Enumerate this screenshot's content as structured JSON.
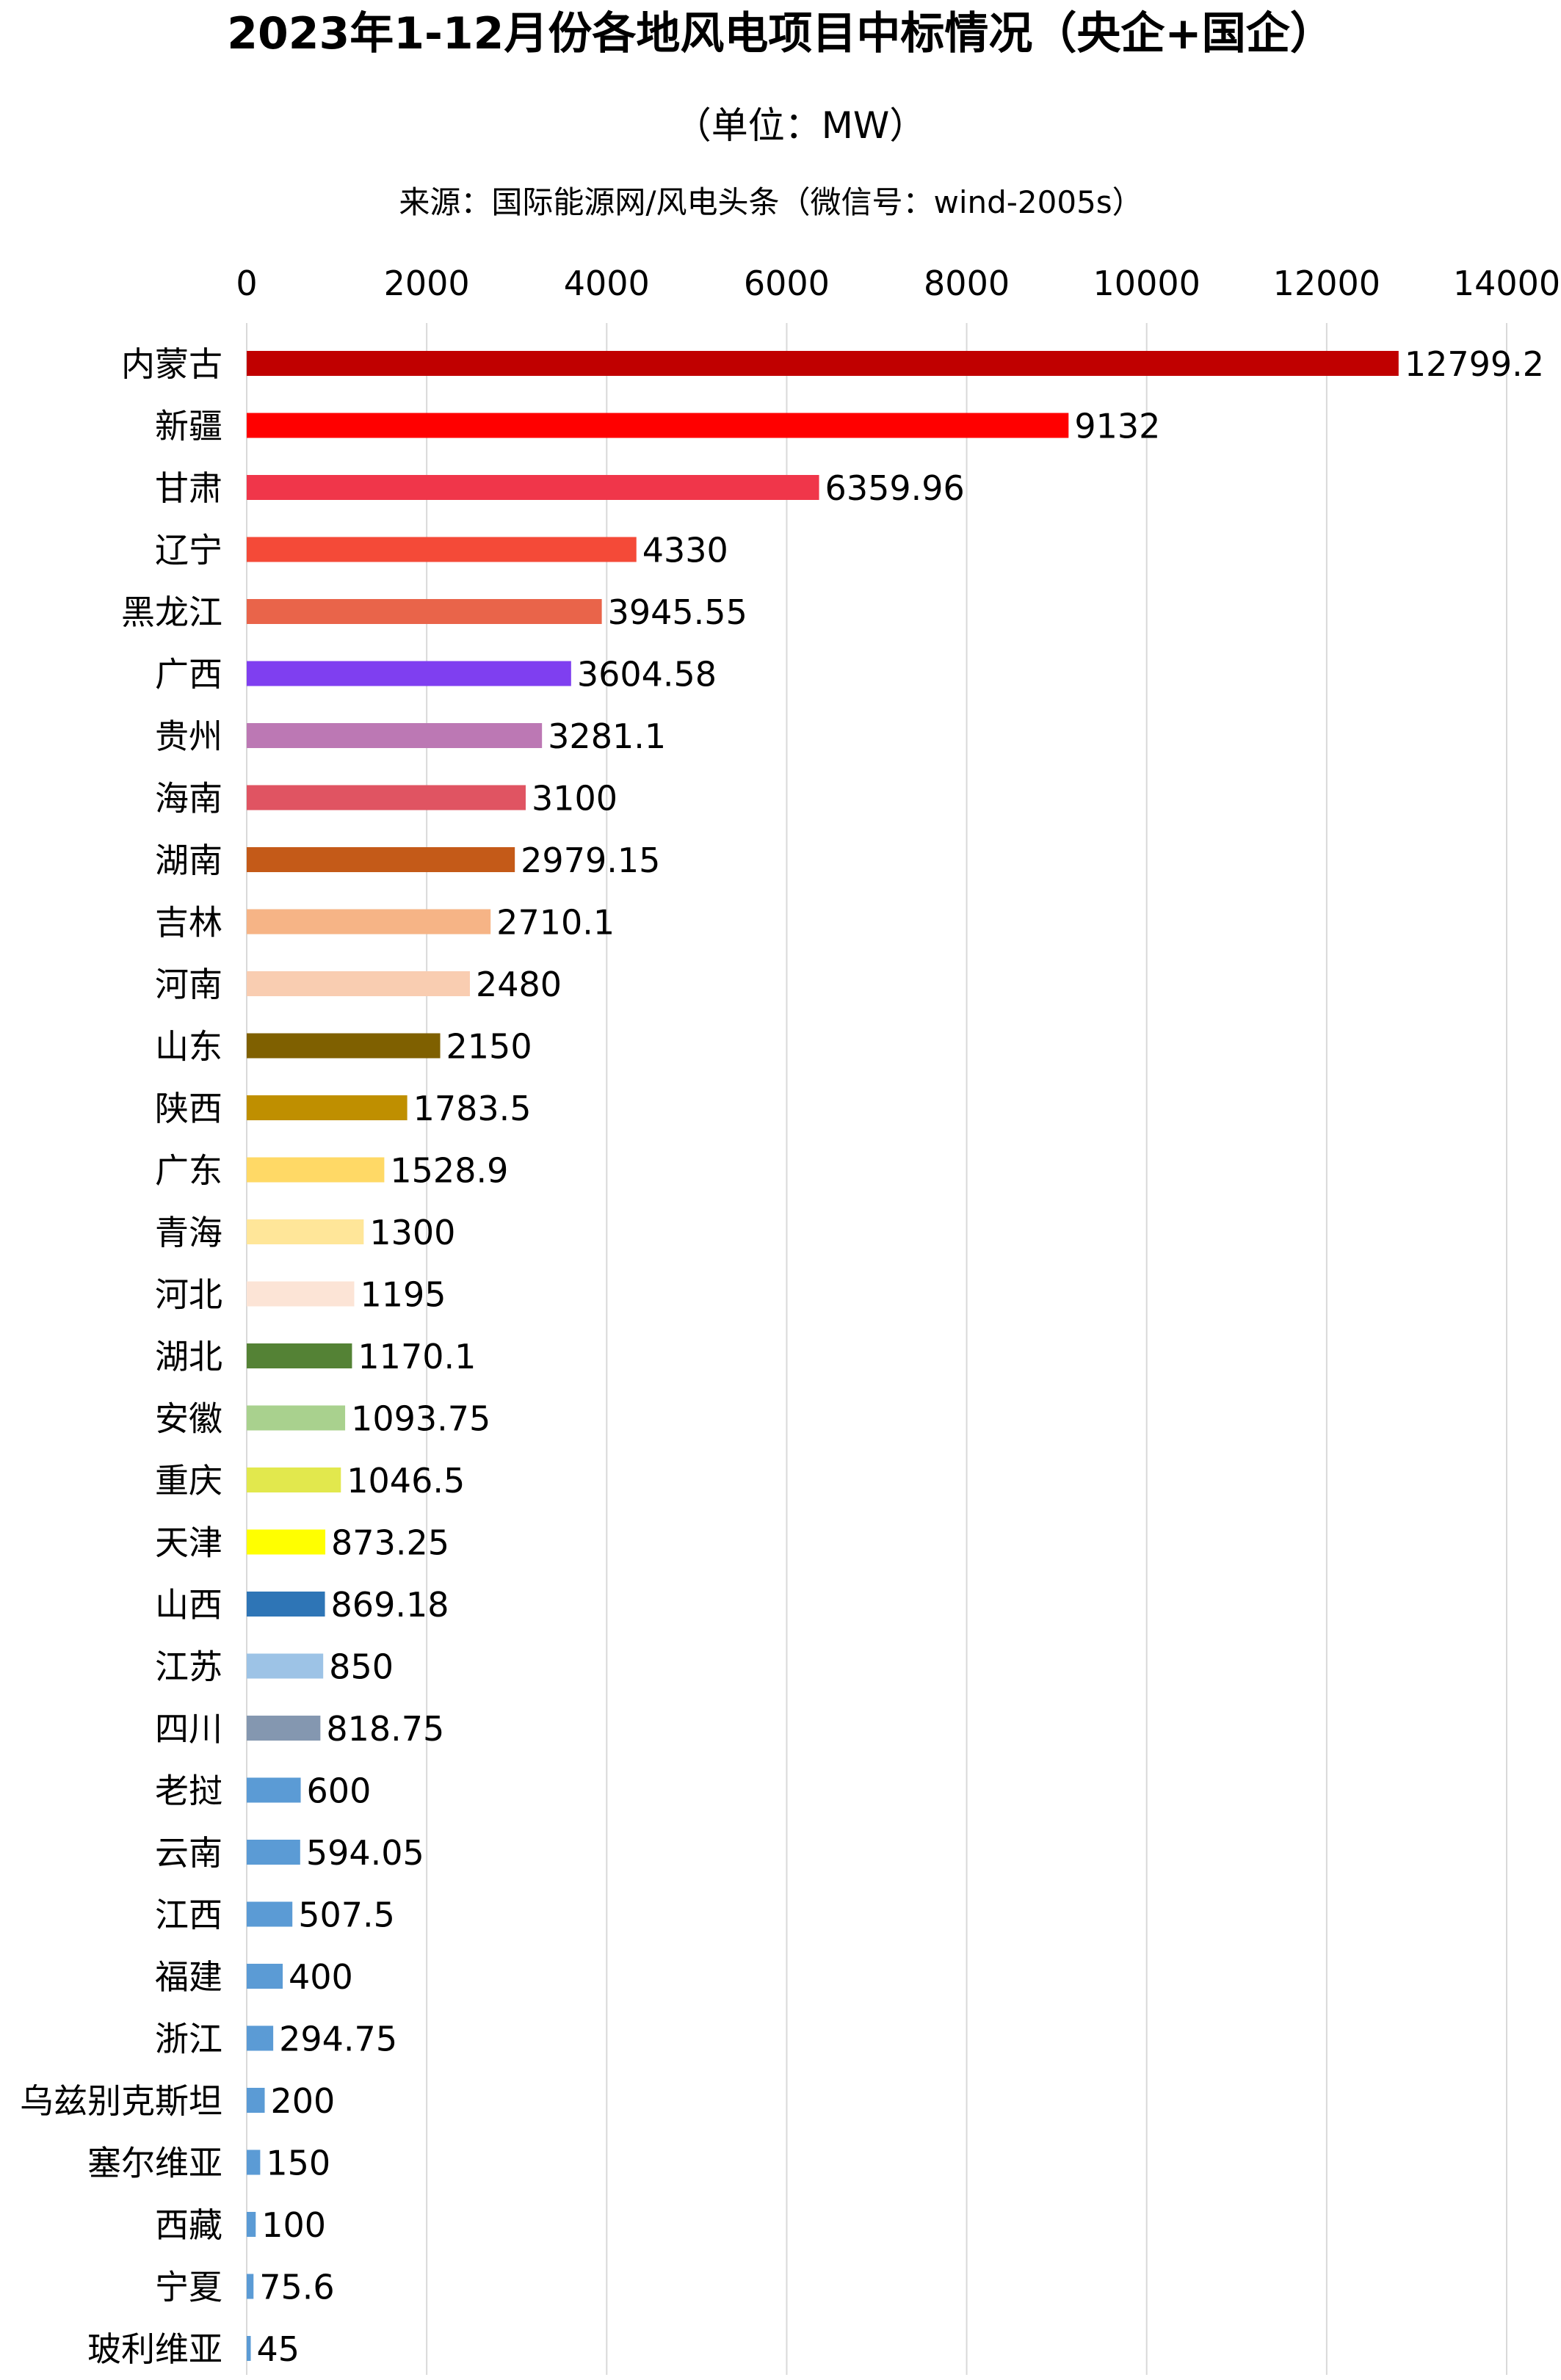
{
  "chart_data": {
    "type": "bar",
    "orientation": "horizontal",
    "title": "2023年1-12月份各地风电项目中标情况（央企+国企）",
    "subtitle": "（单位：MW）",
    "source": "来源：国际能源网/风电头条（微信号：wind-2005s）",
    "xlabel": "",
    "ylabel": "",
    "xlim": [
      0,
      14000
    ],
    "ticks": [
      0,
      2000,
      4000,
      6000,
      8000,
      10000,
      12000,
      14000
    ],
    "tick_labels": [
      "0",
      "2000",
      "4000",
      "6000",
      "8000",
      "10000",
      "12000",
      "14000"
    ],
    "x_axis_position": "top",
    "grid": true,
    "legend": "none",
    "categories": [
      "内蒙古",
      "新疆",
      "甘肃",
      "辽宁",
      "黑龙江",
      "广西",
      "贵州",
      "海南",
      "湖南",
      "吉林",
      "河南",
      "山东",
      "陕西",
      "广东",
      "青海",
      "河北",
      "湖北",
      "安徽",
      "重庆",
      "天津",
      "山西",
      "江苏",
      "四川",
      "老挝",
      "云南",
      "江西",
      "福建",
      "浙江",
      "乌兹别克斯坦",
      "塞尔维亚",
      "西藏",
      "宁夏",
      "玻利维亚"
    ],
    "values": [
      12799.2,
      9132,
      6359.96,
      4330,
      3945.55,
      3604.58,
      3281.1,
      3100,
      2979.15,
      2710.1,
      2480,
      2150,
      1783.5,
      1528.9,
      1300,
      1195,
      1170.1,
      1093.75,
      1046.5,
      873.25,
      869.18,
      850,
      818.75,
      600,
      594.05,
      507.5,
      400,
      294.75,
      200,
      150,
      100,
      75.6,
      45
    ],
    "value_labels": [
      "12799.2",
      "9132",
      "6359.96",
      "4330",
      "3945.55",
      "3604.58",
      "3281.1",
      "3100",
      "2979.15",
      "2710.1",
      "2480",
      "2150",
      "1783.5",
      "1528.9",
      "1300",
      "1195",
      "1170.1",
      "1093.75",
      "1046.5",
      "873.25",
      "869.18",
      "850",
      "818.75",
      "600",
      "594.05",
      "507.5",
      "400",
      "294.75",
      "200",
      "150",
      "100",
      "75.6",
      "45"
    ],
    "colors": [
      "#C00000",
      "#FF0000",
      "#F0364A",
      "#F44A38",
      "#E9644A",
      "#7F3FF0",
      "#BC78B4",
      "#E05462",
      "#C45A18",
      "#F6B486",
      "#F9CDB1",
      "#7F6000",
      "#BF8F00",
      "#FFD966",
      "#FFE699",
      "#FCE4D6",
      "#548235",
      "#A9D18E",
      "#E2E84D",
      "#FFFF00",
      "#2E75B6",
      "#9DC3E6",
      "#8497B0",
      "#5B9BD5",
      "#5B9BD5",
      "#5B9BD5",
      "#5B9BD5",
      "#5B9BD5",
      "#5B9BD5",
      "#5B9BD5",
      "#5B9BD5",
      "#5B9BD5",
      "#5B9BD5"
    ],
    "grid_color": "#D9D9D9"
  }
}
